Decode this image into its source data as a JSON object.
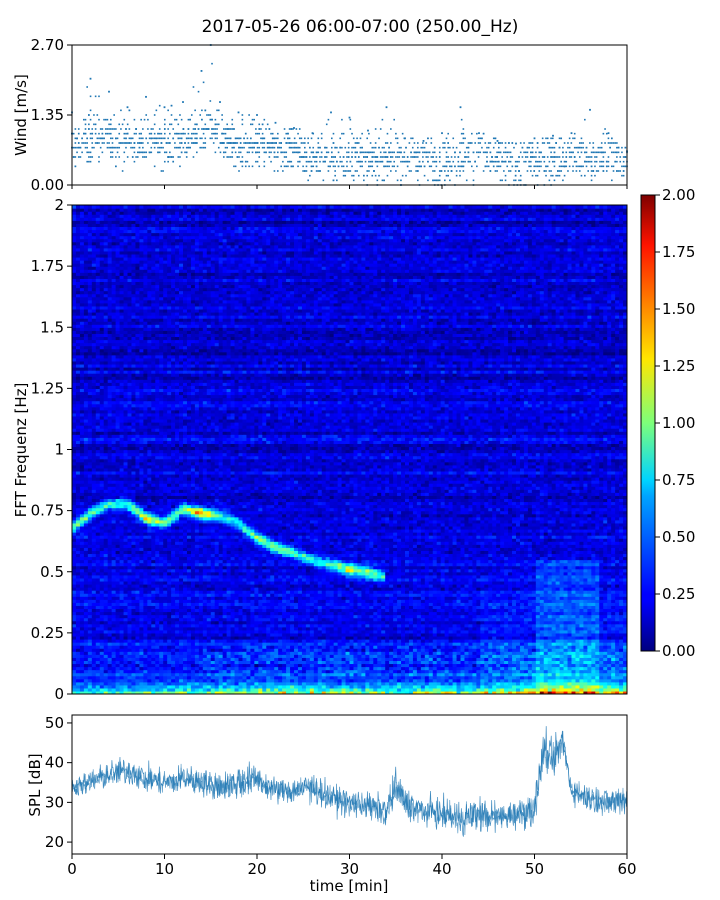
{
  "figure": {
    "title": "2017-05-26 06:00-07:00 (250.00_Hz)"
  },
  "colors": {
    "wind_marker": "#1f77b4",
    "spl_line": "#1f77b4",
    "axes": "#000000",
    "background": "#ffffff"
  },
  "chart_data": [
    {
      "type": "scatter",
      "panel": "wind",
      "title": "",
      "xlabel": "",
      "ylabel": "Wind [m/s]",
      "xlim": [
        0,
        60
      ],
      "ylim": [
        0,
        2.7
      ],
      "yticks": [
        "0.00",
        "1.35",
        "2.70"
      ],
      "x_tick_values": [
        0,
        10,
        20,
        30,
        40,
        50,
        60
      ],
      "x_tick_labels_shown": false,
      "envelope": {
        "x": [
          0,
          2,
          4,
          6,
          8,
          10,
          12,
          14,
          15,
          16,
          18,
          20,
          22,
          24,
          26,
          28,
          30,
          32,
          34,
          36,
          38,
          40,
          42,
          44,
          46,
          48,
          50,
          52,
          54,
          56,
          58,
          60
        ],
        "typical": [
          0.75,
          0.95,
          0.85,
          0.8,
          0.85,
          0.8,
          0.85,
          1.0,
          1.1,
          0.85,
          0.7,
          0.8,
          0.75,
          0.7,
          0.55,
          0.5,
          0.55,
          0.5,
          0.45,
          0.55,
          0.5,
          0.45,
          0.5,
          0.6,
          0.5,
          0.4,
          0.45,
          0.5,
          0.55,
          0.5,
          0.55,
          0.45
        ],
        "peak": [
          1.4,
          2.05,
          1.8,
          1.5,
          1.7,
          1.5,
          1.6,
          2.2,
          2.7,
          1.6,
          1.4,
          1.35,
          1.2,
          1.1,
          1.0,
          1.4,
          1.3,
          1.05,
          1.5,
          0.9,
          0.85,
          1.0,
          1.5,
          1.0,
          0.85,
          0.8,
          0.9,
          0.95,
          1.0,
          1.45,
          1.0,
          0.65
        ]
      },
      "values_note_shown": false
    },
    {
      "type": "heatmap",
      "panel": "spectrogram",
      "title": "",
      "xlabel": "",
      "ylabel": "FFT Frequenz [Hz]",
      "xlim": [
        0,
        60
      ],
      "ylim": [
        0,
        2
      ],
      "yticks": [
        "0",
        "0.25",
        "0.5",
        "0.75",
        "1",
        "1.25",
        "1.5",
        "1.75",
        "2"
      ],
      "colormap": "jet",
      "clim": [
        0,
        2
      ],
      "colorbar_ticks": [
        "0.00",
        "0.25",
        "0.50",
        "0.75",
        "1.00",
        "1.25",
        "1.50",
        "1.75",
        "2.00"
      ],
      "ridge": {
        "x": [
          0,
          2,
          4,
          6,
          8,
          10,
          12,
          14,
          16,
          18,
          20,
          22,
          24,
          26,
          28,
          30,
          32,
          34
        ],
        "freq": [
          0.68,
          0.74,
          0.78,
          0.78,
          0.72,
          0.7,
          0.76,
          0.74,
          0.73,
          0.7,
          0.64,
          0.6,
          0.58,
          0.55,
          0.53,
          0.51,
          0.5,
          0.48
        ],
        "value": [
          1.0,
          0.9,
          0.75,
          0.8,
          1.3,
          1.0,
          0.9,
          1.6,
          0.8,
          0.7,
          0.95,
          1.0,
          0.8,
          0.7,
          0.8,
          1.2,
          1.0,
          0.7
        ]
      },
      "low_band_hot": {
        "x": [
          0,
          5,
          10,
          15,
          20,
          25,
          30,
          35,
          40,
          45,
          50,
          52,
          55,
          60
        ],
        "value": [
          0.9,
          1.0,
          1.2,
          1.4,
          1.5,
          1.6,
          1.4,
          1.3,
          1.5,
          1.3,
          1.6,
          2.0,
          1.9,
          1.5
        ]
      }
    },
    {
      "type": "line",
      "panel": "spl",
      "title": "",
      "xlabel": "time [min]",
      "ylabel": "SPL [dB]",
      "xlim": [
        0,
        60
      ],
      "ylim": [
        17,
        52
      ],
      "xticks": [
        "0",
        "10",
        "20",
        "30",
        "40",
        "50",
        "60"
      ],
      "yticks": [
        "20",
        "30",
        "40",
        "50"
      ],
      "x": [
        0,
        2,
        4,
        6,
        8,
        10,
        12,
        14,
        16,
        18,
        20,
        22,
        24,
        26,
        28,
        30,
        32,
        34,
        35,
        36,
        38,
        40,
        42,
        44,
        46,
        48,
        50,
        51,
        52,
        53,
        54,
        56,
        58,
        60
      ],
      "mean": [
        34,
        35,
        37,
        38,
        36,
        35,
        36,
        35,
        34,
        35,
        36,
        33,
        33,
        34,
        31,
        30,
        29,
        28,
        34,
        30,
        28,
        27,
        26,
        27,
        26,
        27,
        28,
        44,
        40,
        46,
        33,
        31,
        30,
        31
      ],
      "min": [
        30,
        30,
        32,
        33,
        30,
        31,
        31,
        30,
        30,
        31,
        32,
        28,
        28,
        29,
        26,
        25,
        25,
        23,
        27,
        24,
        23,
        22,
        21,
        22,
        21,
        22,
        23,
        36,
        33,
        38,
        28,
        26,
        25,
        25
      ],
      "max": [
        38,
        39,
        42,
        44,
        41,
        40,
        42,
        40,
        40,
        46,
        43,
        38,
        38,
        41,
        36,
        36,
        35,
        34,
        41,
        36,
        34,
        33,
        34,
        36,
        32,
        33,
        36,
        50,
        47,
        50,
        37,
        36,
        36,
        37
      ]
    }
  ]
}
